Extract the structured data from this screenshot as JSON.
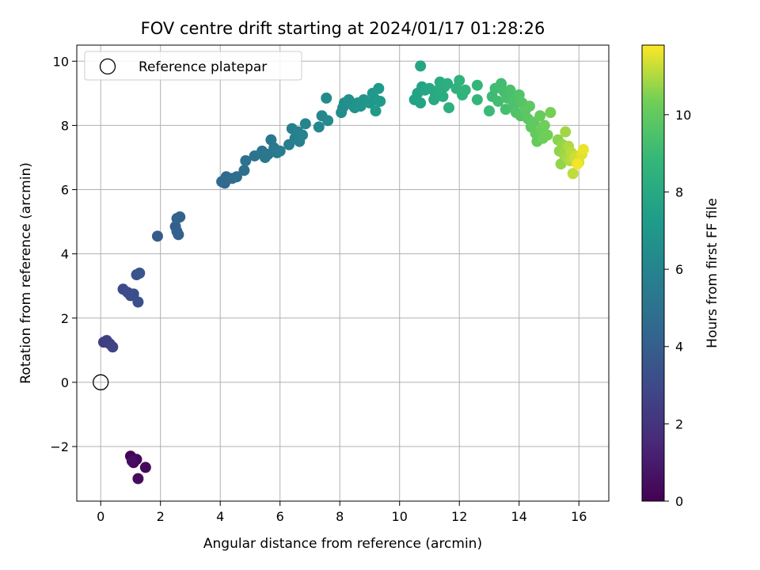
{
  "chart_data": {
    "type": "scatter",
    "title": "FOV centre drift starting at 2024/01/17 01:28:26",
    "xlabel": "Angular distance from reference (arcmin)",
    "ylabel": "Rotation from reference (arcmin)",
    "xlim": [
      -0.8,
      17.0
    ],
    "ylim": [
      -3.7,
      10.5
    ],
    "xticks": [
      "0",
      "2",
      "4",
      "6",
      "8",
      "10",
      "12",
      "14",
      "16"
    ],
    "yticks": [
      "−2",
      "0",
      "2",
      "4",
      "6",
      "8",
      "10"
    ],
    "grid": true,
    "legend": {
      "position": "top-left",
      "entries": [
        {
          "label": "Reference platepar",
          "marker": "hollow-circle"
        }
      ]
    },
    "reference_point": {
      "x": 0,
      "y": 0
    },
    "colorbar": {
      "label": "Hours from first FF file",
      "colormap": "viridis",
      "range": [
        0,
        11.8
      ],
      "ticks": [
        "0",
        "2",
        "4",
        "6",
        "8",
        "10"
      ]
    },
    "series": [
      {
        "points": [
          {
            "x": 1.0,
            "y": -2.3,
            "c": 0.1
          },
          {
            "x": 1.1,
            "y": -2.5,
            "c": 0.2
          },
          {
            "x": 1.2,
            "y": -2.4,
            "c": 0.3
          },
          {
            "x": 1.5,
            "y": -2.65,
            "c": 0.3
          },
          {
            "x": 1.25,
            "y": -3.0,
            "c": 0.4
          },
          {
            "x": 1.05,
            "y": -2.45,
            "c": 0.5
          },
          {
            "x": 0.1,
            "y": 1.25,
            "c": 2.4
          },
          {
            "x": 0.2,
            "y": 1.3,
            "c": 2.5
          },
          {
            "x": 0.3,
            "y": 1.2,
            "c": 2.6
          },
          {
            "x": 0.4,
            "y": 1.1,
            "c": 2.7
          },
          {
            "x": 0.75,
            "y": 2.9,
            "c": 3.0
          },
          {
            "x": 0.9,
            "y": 2.8,
            "c": 3.1
          },
          {
            "x": 1.0,
            "y": 2.7,
            "c": 3.15
          },
          {
            "x": 1.1,
            "y": 2.75,
            "c": 3.2
          },
          {
            "x": 1.25,
            "y": 2.5,
            "c": 3.3
          },
          {
            "x": 1.2,
            "y": 3.35,
            "c": 3.4
          },
          {
            "x": 1.3,
            "y": 3.4,
            "c": 3.5
          },
          {
            "x": 1.9,
            "y": 4.55,
            "c": 3.8
          },
          {
            "x": 2.5,
            "y": 4.85,
            "c": 4.0
          },
          {
            "x": 2.55,
            "y": 4.7,
            "c": 4.05
          },
          {
            "x": 2.6,
            "y": 4.6,
            "c": 4.1
          },
          {
            "x": 2.55,
            "y": 5.1,
            "c": 4.15
          },
          {
            "x": 2.65,
            "y": 5.15,
            "c": 4.2
          },
          {
            "x": 4.05,
            "y": 6.25,
            "c": 4.5
          },
          {
            "x": 4.15,
            "y": 6.2,
            "c": 4.55
          },
          {
            "x": 4.2,
            "y": 6.4,
            "c": 4.6
          },
          {
            "x": 4.4,
            "y": 6.35,
            "c": 4.7
          },
          {
            "x": 4.55,
            "y": 6.4,
            "c": 4.8
          },
          {
            "x": 4.8,
            "y": 6.6,
            "c": 4.9
          },
          {
            "x": 4.85,
            "y": 6.9,
            "c": 5.0
          },
          {
            "x": 5.15,
            "y": 7.05,
            "c": 5.1
          },
          {
            "x": 5.4,
            "y": 7.2,
            "c": 5.2
          },
          {
            "x": 5.5,
            "y": 7.0,
            "c": 5.25
          },
          {
            "x": 5.6,
            "y": 7.1,
            "c": 5.3
          },
          {
            "x": 5.7,
            "y": 7.55,
            "c": 5.35
          },
          {
            "x": 5.8,
            "y": 7.3,
            "c": 5.4
          },
          {
            "x": 5.9,
            "y": 7.15,
            "c": 5.45
          },
          {
            "x": 6.0,
            "y": 7.2,
            "c": 5.5
          },
          {
            "x": 6.3,
            "y": 7.4,
            "c": 5.6
          },
          {
            "x": 6.4,
            "y": 7.9,
            "c": 5.7
          },
          {
            "x": 6.5,
            "y": 7.6,
            "c": 5.75
          },
          {
            "x": 6.6,
            "y": 7.8,
            "c": 5.8
          },
          {
            "x": 6.65,
            "y": 7.5,
            "c": 5.85
          },
          {
            "x": 6.75,
            "y": 7.7,
            "c": 5.9
          },
          {
            "x": 6.85,
            "y": 8.05,
            "c": 6.0
          },
          {
            "x": 7.3,
            "y": 7.95,
            "c": 6.1
          },
          {
            "x": 7.4,
            "y": 8.3,
            "c": 6.2
          },
          {
            "x": 7.6,
            "y": 8.15,
            "c": 6.3
          },
          {
            "x": 7.55,
            "y": 8.85,
            "c": 6.35
          },
          {
            "x": 8.05,
            "y": 8.4,
            "c": 6.5
          },
          {
            "x": 8.1,
            "y": 8.55,
            "c": 6.55
          },
          {
            "x": 8.15,
            "y": 8.7,
            "c": 6.6
          },
          {
            "x": 8.3,
            "y": 8.8,
            "c": 6.65
          },
          {
            "x": 8.4,
            "y": 8.65,
            "c": 6.7
          },
          {
            "x": 8.5,
            "y": 8.55,
            "c": 6.75
          },
          {
            "x": 8.6,
            "y": 8.7,
            "c": 6.8
          },
          {
            "x": 8.7,
            "y": 8.6,
            "c": 6.85
          },
          {
            "x": 8.8,
            "y": 8.8,
            "c": 6.9
          },
          {
            "x": 9.0,
            "y": 8.7,
            "c": 7.0
          },
          {
            "x": 9.1,
            "y": 9.0,
            "c": 7.05
          },
          {
            "x": 9.2,
            "y": 8.8,
            "c": 7.1
          },
          {
            "x": 9.3,
            "y": 9.15,
            "c": 7.15
          },
          {
            "x": 9.35,
            "y": 8.75,
            "c": 7.2
          },
          {
            "x": 9.2,
            "y": 8.45,
            "c": 7.2
          },
          {
            "x": 10.5,
            "y": 8.8,
            "c": 7.6
          },
          {
            "x": 10.6,
            "y": 9.0,
            "c": 7.65
          },
          {
            "x": 10.7,
            "y": 8.7,
            "c": 7.7
          },
          {
            "x": 10.75,
            "y": 9.2,
            "c": 7.75
          },
          {
            "x": 10.7,
            "y": 9.85,
            "c": 7.8
          },
          {
            "x": 10.85,
            "y": 9.1,
            "c": 7.85
          },
          {
            "x": 11.0,
            "y": 9.15,
            "c": 7.9
          },
          {
            "x": 11.15,
            "y": 8.8,
            "c": 8.0
          },
          {
            "x": 11.2,
            "y": 8.95,
            "c": 8.05
          },
          {
            "x": 11.3,
            "y": 9.1,
            "c": 8.1
          },
          {
            "x": 11.35,
            "y": 9.35,
            "c": 8.15
          },
          {
            "x": 11.45,
            "y": 8.9,
            "c": 8.2
          },
          {
            "x": 11.5,
            "y": 9.2,
            "c": 8.25
          },
          {
            "x": 11.6,
            "y": 9.3,
            "c": 8.3
          },
          {
            "x": 11.65,
            "y": 8.55,
            "c": 8.35
          },
          {
            "x": 11.9,
            "y": 9.15,
            "c": 8.5
          },
          {
            "x": 12.0,
            "y": 9.4,
            "c": 8.55
          },
          {
            "x": 12.1,
            "y": 8.95,
            "c": 8.6
          },
          {
            "x": 12.2,
            "y": 9.1,
            "c": 8.65
          },
          {
            "x": 12.6,
            "y": 9.25,
            "c": 8.75
          },
          {
            "x": 12.6,
            "y": 8.8,
            "c": 8.8
          },
          {
            "x": 13.0,
            "y": 8.45,
            "c": 9.0
          },
          {
            "x": 13.1,
            "y": 8.9,
            "c": 9.05
          },
          {
            "x": 13.2,
            "y": 9.15,
            "c": 9.1
          },
          {
            "x": 13.3,
            "y": 8.75,
            "c": 9.15
          },
          {
            "x": 13.4,
            "y": 9.3,
            "c": 9.2
          },
          {
            "x": 13.5,
            "y": 9.05,
            "c": 9.25
          },
          {
            "x": 13.55,
            "y": 8.5,
            "c": 9.3
          },
          {
            "x": 13.6,
            "y": 8.85,
            "c": 9.35
          },
          {
            "x": 13.7,
            "y": 9.1,
            "c": 9.4
          },
          {
            "x": 13.8,
            "y": 8.6,
            "c": 9.45
          },
          {
            "x": 13.85,
            "y": 8.8,
            "c": 9.5
          },
          {
            "x": 13.9,
            "y": 8.4,
            "c": 9.55
          },
          {
            "x": 14.0,
            "y": 8.95,
            "c": 9.6
          },
          {
            "x": 14.05,
            "y": 8.3,
            "c": 9.65
          },
          {
            "x": 14.1,
            "y": 8.7,
            "c": 9.7
          },
          {
            "x": 14.2,
            "y": 8.45,
            "c": 9.8
          },
          {
            "x": 14.3,
            "y": 8.2,
            "c": 9.85
          },
          {
            "x": 14.35,
            "y": 8.6,
            "c": 9.9
          },
          {
            "x": 14.4,
            "y": 7.95,
            "c": 9.95
          },
          {
            "x": 14.5,
            "y": 8.1,
            "c": 10.0
          },
          {
            "x": 14.55,
            "y": 7.75,
            "c": 10.05
          },
          {
            "x": 14.6,
            "y": 7.5,
            "c": 10.1
          },
          {
            "x": 14.7,
            "y": 8.3,
            "c": 10.15
          },
          {
            "x": 14.75,
            "y": 7.85,
            "c": 10.2
          },
          {
            "x": 14.8,
            "y": 7.6,
            "c": 10.25
          },
          {
            "x": 14.85,
            "y": 8.0,
            "c": 10.3
          },
          {
            "x": 14.95,
            "y": 7.7,
            "c": 10.35
          },
          {
            "x": 15.05,
            "y": 8.4,
            "c": 10.4
          },
          {
            "x": 15.3,
            "y": 7.55,
            "c": 10.6
          },
          {
            "x": 15.35,
            "y": 7.2,
            "c": 10.65
          },
          {
            "x": 15.4,
            "y": 6.8,
            "c": 10.7
          },
          {
            "x": 15.45,
            "y": 7.4,
            "c": 10.75
          },
          {
            "x": 15.5,
            "y": 7.1,
            "c": 10.8
          },
          {
            "x": 15.55,
            "y": 7.8,
            "c": 10.85
          },
          {
            "x": 15.6,
            "y": 7.0,
            "c": 10.9
          },
          {
            "x": 15.65,
            "y": 7.35,
            "c": 11.0
          },
          {
            "x": 15.7,
            "y": 6.9,
            "c": 11.05
          },
          {
            "x": 15.75,
            "y": 7.15,
            "c": 11.1
          },
          {
            "x": 15.8,
            "y": 6.5,
            "c": 11.15
          },
          {
            "x": 15.85,
            "y": 6.95,
            "c": 11.2
          },
          {
            "x": 15.9,
            "y": 7.05,
            "c": 11.3
          },
          {
            "x": 16.0,
            "y": 6.85,
            "c": 11.4
          },
          {
            "x": 16.1,
            "y": 7.1,
            "c": 11.5
          },
          {
            "x": 16.15,
            "y": 7.25,
            "c": 11.6
          },
          {
            "x": 15.95,
            "y": 6.8,
            "c": 11.7
          }
        ]
      }
    ]
  }
}
